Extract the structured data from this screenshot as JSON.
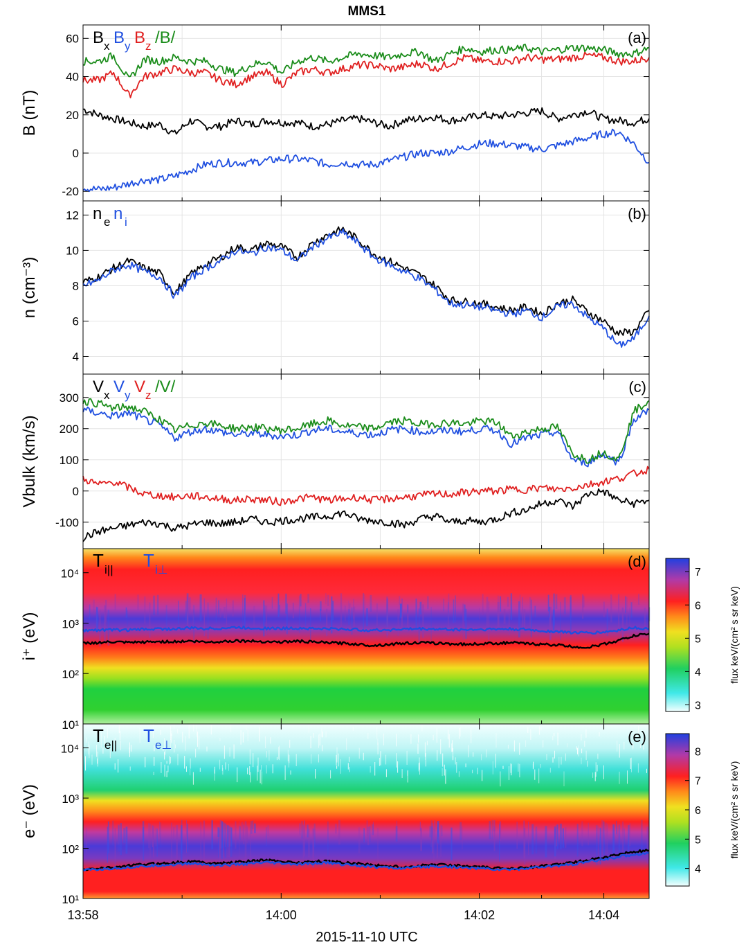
{
  "title": "MMS1",
  "xaxis": {
    "label": "2015-11-10 UTC",
    "ticks": [
      "13:58",
      "14:00",
      "14:02",
      "14:04"
    ]
  },
  "colors": {
    "black": "#000000",
    "blue": "#1f4fe0",
    "red": "#e02020",
    "green": "#1a8c1a"
  },
  "chart_data": [
    {
      "panel": "(a)",
      "type": "line",
      "ylabel": "B (nT)",
      "ylim": [
        -25,
        67
      ],
      "yticks": [
        -20,
        0,
        20,
        40,
        60
      ],
      "grid": true,
      "legend": [
        "Bx",
        "By",
        "Bz",
        "/B/"
      ],
      "series": [
        {
          "name": "Bx",
          "color": "black",
          "values": [
            23,
            20,
            18,
            16,
            14,
            15,
            10,
            17,
            14,
            14,
            17,
            15,
            17,
            16,
            16,
            14,
            15,
            17,
            18,
            16,
            14,
            17,
            18,
            19,
            17,
            18,
            20,
            19,
            20,
            21,
            22,
            18,
            20,
            22,
            18,
            17,
            16,
            18
          ]
        },
        {
          "name": "By",
          "color": "blue",
          "values": [
            -18,
            -19,
            -18,
            -16,
            -14,
            -14,
            -12,
            -9,
            -6,
            -5,
            -5,
            -5,
            -4,
            -3,
            -3,
            -4,
            -6,
            -5,
            -6,
            -6,
            -4,
            -2,
            0,
            0,
            1,
            3,
            5,
            5,
            4,
            3,
            2,
            4,
            6,
            8,
            10,
            11,
            5,
            -5
          ]
        },
        {
          "name": "Bz",
          "color": "red",
          "values": [
            38,
            38,
            42,
            30,
            40,
            42,
            44,
            42,
            42,
            38,
            36,
            40,
            42,
            36,
            42,
            44,
            42,
            44,
            46,
            46,
            44,
            45,
            47,
            44,
            47,
            50,
            48,
            48,
            48,
            50,
            49,
            49,
            50,
            51,
            50,
            48,
            48,
            50
          ]
        },
        {
          "name": "/B/",
          "color": "green",
          "values": [
            48,
            48,
            51,
            38,
            49,
            48,
            50,
            48,
            48,
            44,
            42,
            46,
            48,
            42,
            48,
            50,
            48,
            50,
            52,
            51,
            50,
            52,
            53,
            48,
            52,
            55,
            53,
            54,
            54,
            55,
            53,
            54,
            55,
            55,
            54,
            52,
            52,
            55
          ]
        }
      ]
    },
    {
      "panel": "(b)",
      "type": "line",
      "ylabel": "n (cm⁻³)",
      "ylim": [
        3,
        12.8
      ],
      "yticks": [
        4,
        6,
        8,
        10,
        12
      ],
      "grid": true,
      "legend": [
        "ne",
        "ni"
      ],
      "series": [
        {
          "name": "ne",
          "color": "black",
          "values": [
            8.2,
            8.5,
            9.0,
            9.4,
            9.0,
            8.7,
            7.6,
            8.6,
            9.2,
            9.6,
            10.2,
            10.0,
            10.4,
            10.2,
            9.6,
            10.4,
            10.9,
            11.2,
            10.6,
            9.8,
            9.4,
            9.0,
            8.6,
            8.0,
            7.2,
            7.1,
            7.0,
            6.8,
            6.6,
            6.8,
            6.4,
            7.0,
            7.2,
            6.5,
            6.0,
            5.3,
            5.4,
            6.6
          ]
        },
        {
          "name": "ni",
          "color": "blue",
          "values": [
            8.0,
            8.3,
            8.9,
            9.2,
            8.8,
            8.5,
            7.4,
            8.4,
            9.0,
            9.4,
            10.0,
            9.8,
            10.2,
            10.0,
            9.4,
            10.2,
            10.7,
            11.0,
            10.4,
            9.6,
            9.2,
            8.8,
            8.4,
            7.8,
            7.0,
            6.9,
            6.8,
            6.6,
            6.4,
            6.6,
            6.2,
            6.8,
            7.0,
            6.2,
            5.6,
            4.6,
            5.0,
            6.3
          ]
        }
      ]
    },
    {
      "panel": "(c)",
      "type": "line",
      "ylabel": "Vbulk (km/s)",
      "ylim": [
        -185,
        375
      ],
      "yticks": [
        -100,
        0,
        100,
        200,
        300
      ],
      "grid": true,
      "legend": [
        "Vx",
        "Vy",
        "Vz",
        "/V/"
      ],
      "series": [
        {
          "name": "Vx",
          "color": "black",
          "values": [
            -150,
            -130,
            -120,
            -110,
            -100,
            -105,
            -120,
            -110,
            -100,
            -105,
            -100,
            -90,
            -100,
            -95,
            -90,
            -85,
            -80,
            -70,
            -90,
            -95,
            -100,
            -110,
            -90,
            -80,
            -100,
            -95,
            -100,
            -90,
            -70,
            -60,
            -40,
            -30,
            -50,
            -10,
            0,
            -30,
            -40,
            -30
          ]
        },
        {
          "name": "Vy",
          "color": "blue",
          "values": [
            260,
            250,
            240,
            250,
            230,
            210,
            170,
            190,
            200,
            190,
            180,
            185,
            180,
            175,
            180,
            195,
            200,
            190,
            185,
            180,
            195,
            200,
            190,
            190,
            195,
            190,
            200,
            195,
            150,
            170,
            180,
            190,
            100,
            90,
            120,
            90,
            230,
            260
          ]
        },
        {
          "name": "Vz",
          "color": "red",
          "values": [
            40,
            20,
            30,
            10,
            -10,
            -15,
            -20,
            -15,
            -20,
            -25,
            -30,
            -25,
            -30,
            -35,
            -25,
            -20,
            -30,
            -25,
            -20,
            -30,
            -25,
            -20,
            -15,
            -10,
            -10,
            -5,
            0,
            0,
            5,
            5,
            10,
            5,
            10,
            20,
            30,
            40,
            55,
            70
          ]
        },
        {
          "name": "/V/",
          "color": "green",
          "values": [
            290,
            280,
            265,
            270,
            255,
            230,
            195,
            210,
            220,
            210,
            200,
            205,
            200,
            195,
            200,
            215,
            225,
            210,
            205,
            200,
            220,
            225,
            215,
            215,
            220,
            215,
            225,
            220,
            175,
            190,
            200,
            205,
            120,
            100,
            125,
            100,
            255,
            290
          ]
        }
      ]
    },
    {
      "panel": "(d)",
      "type": "heatmap",
      "ylabel": "i⁺ (eV)",
      "yscale": "log",
      "ylim": [
        10,
        30000
      ],
      "yticks": [
        "10¹",
        "10²",
        "10³",
        "10⁴"
      ],
      "colorbar": {
        "label": "flux keV/(cm² s sr keV)",
        "range": [
          2.8,
          7.4
        ],
        "ticks": [
          "3",
          "4",
          "5",
          "6",
          "7"
        ]
      },
      "legend": [
        "Ti||",
        "Ti⊥"
      ],
      "series": [
        {
          "name": "Ti||",
          "color": "black",
          "values": [
            400,
            410,
            420,
            410,
            420,
            430,
            430,
            440,
            420,
            430,
            450,
            440,
            430,
            420,
            440,
            420,
            410,
            400,
            380,
            360,
            380,
            400,
            410,
            400,
            390,
            380,
            390,
            400,
            410,
            390,
            380,
            370,
            340,
            330,
            380,
            450,
            560,
            620
          ]
        },
        {
          "name": "Ti⊥",
          "color": "blue",
          "values": [
            720,
            730,
            740,
            730,
            760,
            770,
            760,
            800,
            780,
            790,
            820,
            800,
            790,
            780,
            800,
            780,
            770,
            760,
            740,
            720,
            740,
            760,
            770,
            760,
            750,
            740,
            750,
            760,
            760,
            740,
            700,
            680,
            650,
            640,
            660,
            720,
            820,
            760
          ]
        }
      ]
    },
    {
      "panel": "(e)",
      "type": "heatmap",
      "ylabel": "e⁻ (eV)",
      "yscale": "log",
      "ylim": [
        10,
        30000
      ],
      "yticks": [
        "10¹",
        "10²",
        "10³",
        "10⁴"
      ],
      "colorbar": {
        "label": "flux keV/(cm² s sr keV)",
        "range": [
          3.4,
          8.6
        ],
        "ticks": [
          "4",
          "5",
          "6",
          "7",
          "8"
        ]
      },
      "legend": [
        "Te||",
        "Te⊥"
      ],
      "series": [
        {
          "name": "Te||",
          "color": "black",
          "values": [
            37,
            40,
            42,
            45,
            48,
            50,
            52,
            55,
            52,
            50,
            53,
            55,
            58,
            55,
            52,
            54,
            56,
            52,
            50,
            46,
            44,
            42,
            45,
            48,
            46,
            44,
            42,
            40,
            40,
            42,
            44,
            48,
            52,
            58,
            65,
            75,
            85,
            90
          ]
        },
        {
          "name": "Te⊥",
          "color": "blue",
          "values": [
            36,
            38,
            40,
            42,
            44,
            46,
            48,
            50,
            48,
            46,
            48,
            50,
            52,
            50,
            48,
            50,
            52,
            48,
            46,
            43,
            41,
            40,
            42,
            44,
            43,
            41,
            40,
            38,
            38,
            40,
            42,
            45,
            48,
            54,
            60,
            68,
            76,
            80
          ]
        }
      ]
    }
  ]
}
